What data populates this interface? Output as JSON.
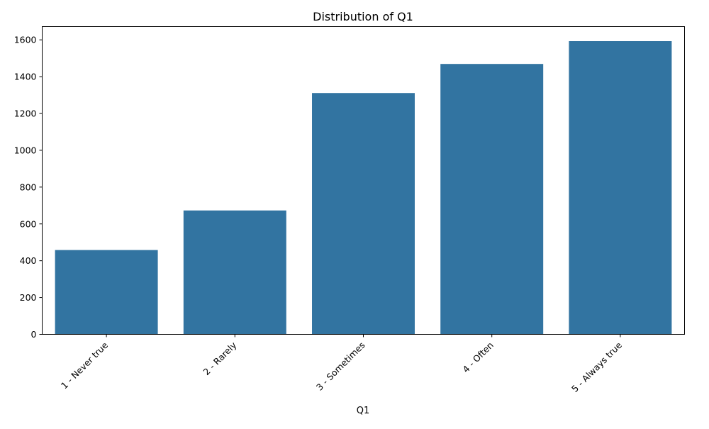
{
  "chart_data": {
    "type": "bar",
    "title": "Distribution of Q1",
    "xlabel": "Q1",
    "ylabel": "",
    "categories": [
      "1 - Never true",
      "2 - Rarely",
      "3 - Sometimes",
      "4 - Often",
      "5 - Always true"
    ],
    "values": [
      458,
      673,
      1311,
      1469,
      1593
    ],
    "ylim": [
      0,
      1672
    ],
    "yticks": [
      0,
      200,
      400,
      600,
      800,
      1000,
      1200,
      1400,
      1600
    ],
    "bar_color": "#3274a1",
    "grid": false,
    "legend": "none"
  }
}
